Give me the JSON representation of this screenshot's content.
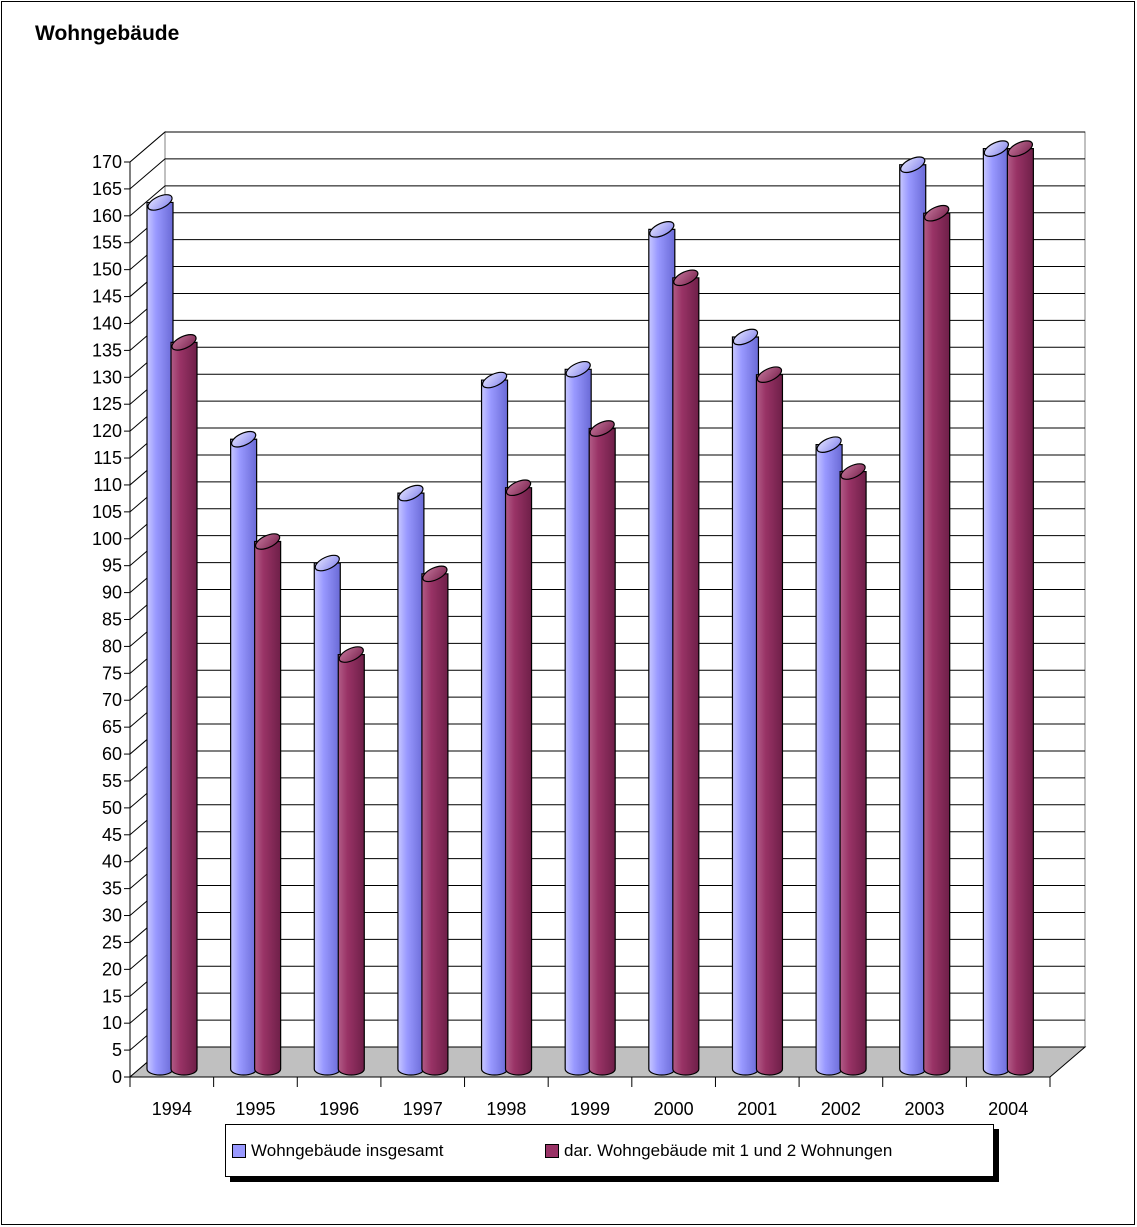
{
  "chart_data": {
    "type": "bar",
    "title": "Wohngebäude",
    "categories": [
      "1994",
      "1995",
      "1996",
      "1997",
      "1998",
      "1999",
      "2000",
      "2001",
      "2002",
      "2003",
      "2004"
    ],
    "series": [
      {
        "name": "Wohngebäude insgesamt",
        "color": "#9999ff",
        "values": [
          161,
          117,
          94,
          107,
          128,
          130,
          156,
          136,
          116,
          168,
          171
        ]
      },
      {
        "name": "dar. Wohngebäude mit 1 und 2 Wohnungen",
        "color": "#993366",
        "values": [
          135,
          98,
          77,
          92,
          108,
          119,
          147,
          129,
          111,
          159,
          171
        ]
      }
    ],
    "yticks": [
      "0",
      "5",
      "10",
      "15",
      "20",
      "25",
      "30",
      "35",
      "40",
      "45",
      "50",
      "55",
      "60",
      "65",
      "70",
      "75",
      "80",
      "85",
      "90",
      "95",
      "100",
      "105",
      "110",
      "115",
      "120",
      "125",
      "130",
      "135",
      "140",
      "145",
      "150",
      "155",
      "160",
      "165",
      "170"
    ],
    "ylim": [
      0,
      170
    ],
    "xlabel": "",
    "ylabel": "",
    "grid": true,
    "legend_position": "bottom",
    "floor_color": "#c0c0c0"
  }
}
